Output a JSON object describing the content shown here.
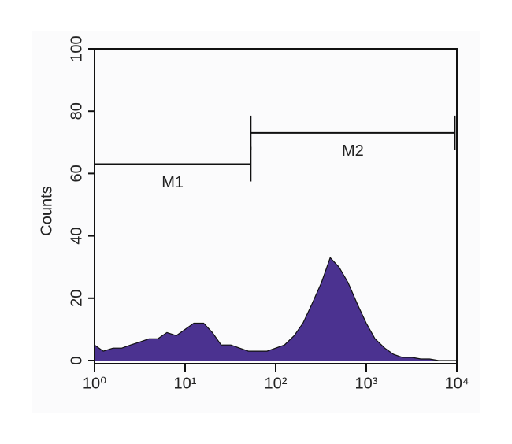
{
  "chart_data": {
    "type": "area",
    "y_label": "Counts",
    "xscale": "log",
    "color": "#4b3290",
    "line_color": "#111111",
    "x": [
      1,
      1.25,
      1.6,
      2,
      2.5,
      3.2,
      4,
      5,
      6.3,
      8,
      10,
      12.5,
      16,
      20,
      25,
      32,
      40,
      50,
      63,
      80,
      100,
      125,
      160,
      200,
      250,
      320,
      400,
      500,
      630,
      800,
      1000,
      1250,
      1600,
      2000,
      2500,
      3200,
      4000,
      5000,
      6300,
      8000,
      10000
    ],
    "values": [
      5,
      3,
      4,
      4,
      5,
      6,
      7,
      7,
      9,
      8,
      10,
      12,
      12,
      9,
      5,
      5,
      4,
      3,
      3,
      3,
      4,
      5,
      8,
      12,
      18,
      25,
      33,
      30,
      25,
      18,
      12,
      7,
      4,
      2,
      1,
      1,
      0.5,
      0.5,
      0,
      0,
      0
    ],
    "xlim": [
      1,
      10000
    ],
    "xticks": [
      {
        "value": 1,
        "label": "10⁰"
      },
      {
        "value": 10,
        "label": "10¹"
      },
      {
        "value": 100,
        "label": "10²"
      },
      {
        "value": 1000,
        "label": "10³"
      },
      {
        "value": 10000,
        "label": "10⁴"
      }
    ],
    "ylim": [
      0,
      100
    ],
    "yticks": [
      0,
      20,
      40,
      60,
      80,
      100
    ],
    "markers": [
      {
        "name": "M1",
        "range": [
          1,
          53
        ],
        "y": 63
      },
      {
        "name": "M2",
        "range": [
          53,
          9500
        ],
        "y": 73
      }
    ]
  }
}
